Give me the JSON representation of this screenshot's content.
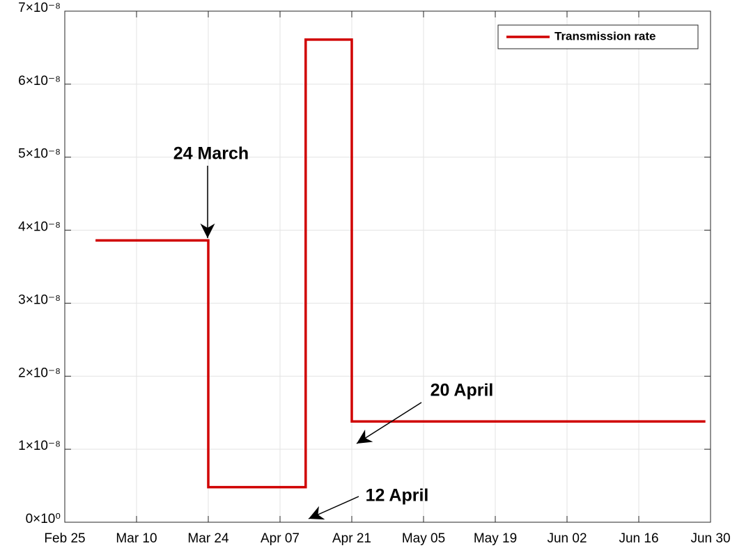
{
  "chart_data": {
    "type": "line",
    "x": [
      6,
      28,
      28,
      47,
      47,
      56,
      56,
      125
    ],
    "series": [
      {
        "name": "Transmission rate",
        "color": "#d00000",
        "values": [
          3.86e-08,
          3.86e-08,
          4.8e-09,
          4.8e-09,
          6.61e-08,
          6.61e-08,
          1.38e-08,
          1.38e-08
        ]
      }
    ],
    "xlim": [
      0,
      126
    ],
    "xticks": [
      {
        "value": 0,
        "label": "Feb 25"
      },
      {
        "value": 14,
        "label": "Mar 10"
      },
      {
        "value": 28,
        "label": "Mar 24"
      },
      {
        "value": 42,
        "label": "Apr 07"
      },
      {
        "value": 56,
        "label": "Apr 21"
      },
      {
        "value": 70,
        "label": "May 05"
      },
      {
        "value": 84,
        "label": "May 19"
      },
      {
        "value": 98,
        "label": "Jun 02"
      },
      {
        "value": 112,
        "label": "Jun 16"
      },
      {
        "value": 126,
        "label": "Jun 30"
      }
    ],
    "ylim": [
      0,
      7e-08
    ],
    "yticks": [
      {
        "value": 0,
        "label": "0×10⁰"
      },
      {
        "value": 1e-08,
        "label": "1×10⁻⁸"
      },
      {
        "value": 2e-08,
        "label": "2×10⁻⁸"
      },
      {
        "value": 3e-08,
        "label": "3×10⁻⁸"
      },
      {
        "value": 4e-08,
        "label": "4×10⁻⁸"
      },
      {
        "value": 5e-08,
        "label": "5×10⁻⁸"
      },
      {
        "value": 6e-08,
        "label": "6×10⁻⁸"
      },
      {
        "value": 7e-08,
        "label": "7×10⁻⁸"
      }
    ],
    "grid": true,
    "legend": "top-right",
    "annotations": [
      {
        "text": "24 March"
      },
      {
        "text": "20 April"
      },
      {
        "text": "12 April"
      }
    ]
  }
}
